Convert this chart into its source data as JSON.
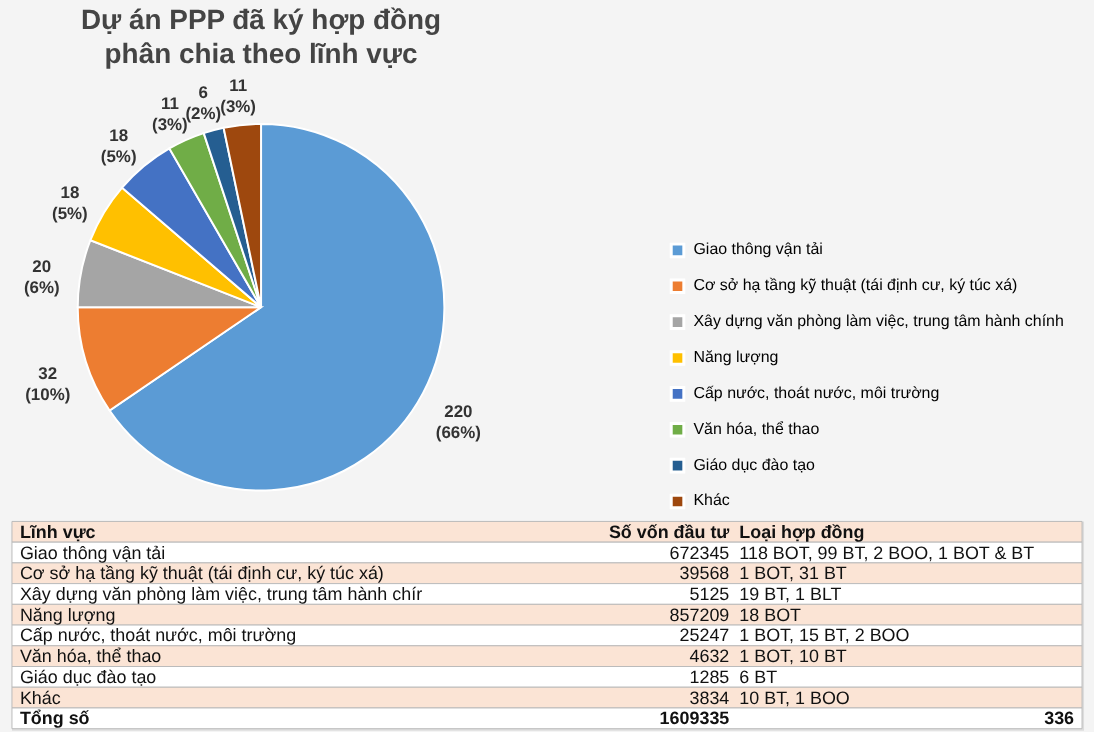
{
  "chart_data": [
    {
      "type": "pie",
      "title": "Dự án PPP đã ký hợp đồng\nphân chia theo lĩnh vực",
      "categories": [
        "Giao thông vận tải",
        "Cơ sở hạ tầng kỹ thuật (tái định cư, ký túc xá)",
        "Xây dựng văn phòng làm việc, trung tâm hành chính",
        "Năng lượng",
        "Cấp nước, thoát nước, môi trường",
        "Văn hóa, thể thao",
        "Giáo dục đào tạo",
        "Khác"
      ],
      "values": [
        220,
        32,
        20,
        18,
        18,
        11,
        6,
        11
      ],
      "value_labels": [
        "220 (66%)",
        "32 (10%)",
        "20 (6%)",
        "18 (5%)",
        "18 (5%)",
        "11 (3%)",
        "6 (2%)",
        "11 (3%)"
      ],
      "colors": [
        "#5b9bd5",
        "#ed7d31",
        "#a5a5a5",
        "#ffc000",
        "#4472c4",
        "#70ad47",
        "#255e91",
        "#9e480e"
      ],
      "legend": "right"
    },
    {
      "type": "other",
      "xlabel": "Lĩnh vực",
      "categories": [
        "Giao thông vận tải",
        "Cơ sở hạ tầng kỹ thuật (tái định cư, ký túc xá)",
        "Xây dựng văn phòng làm việc, trung tâm hành chír",
        "Năng lượng",
        "Cấp nước, thoát nước, môi trường",
        "Văn hóa, thể thao",
        "Giáo dục đào tạo",
        "Khác",
        "Tổng số"
      ],
      "series": [
        {
          "name": "Số vốn đầu tư",
          "colors": [
            "#ffffff",
            "#fbe4d5",
            "#ffffff",
            "#fbe4d5",
            "#ffffff",
            "#fbe4d5",
            "#ffffff",
            "#fbe4d5",
            "#ffffff"
          ],
          "values": [
            672345,
            39568,
            5125,
            857209,
            25247,
            4632,
            1285,
            3834,
            1609335
          ]
        },
        {
          "name": "Loại hợp đồng",
          "values": [
            null,
            null,
            null,
            null,
            null,
            null,
            null,
            null,
            null
          ],
          "value_labels": [
            "118 BOT, 99 BT, 2 BOO, 1 BOT & BT",
            "1 BOT, 31 BT",
            "19 BT, 1 BLT",
            "18 BOT",
            "1 BOT, 15 BT, 2 BOO",
            "1 BOT, 10 BT",
            "6 BT",
            "10 BT, 1 BOO",
            "336"
          ]
        }
      ],
      "data_labels": true
    }
  ]
}
